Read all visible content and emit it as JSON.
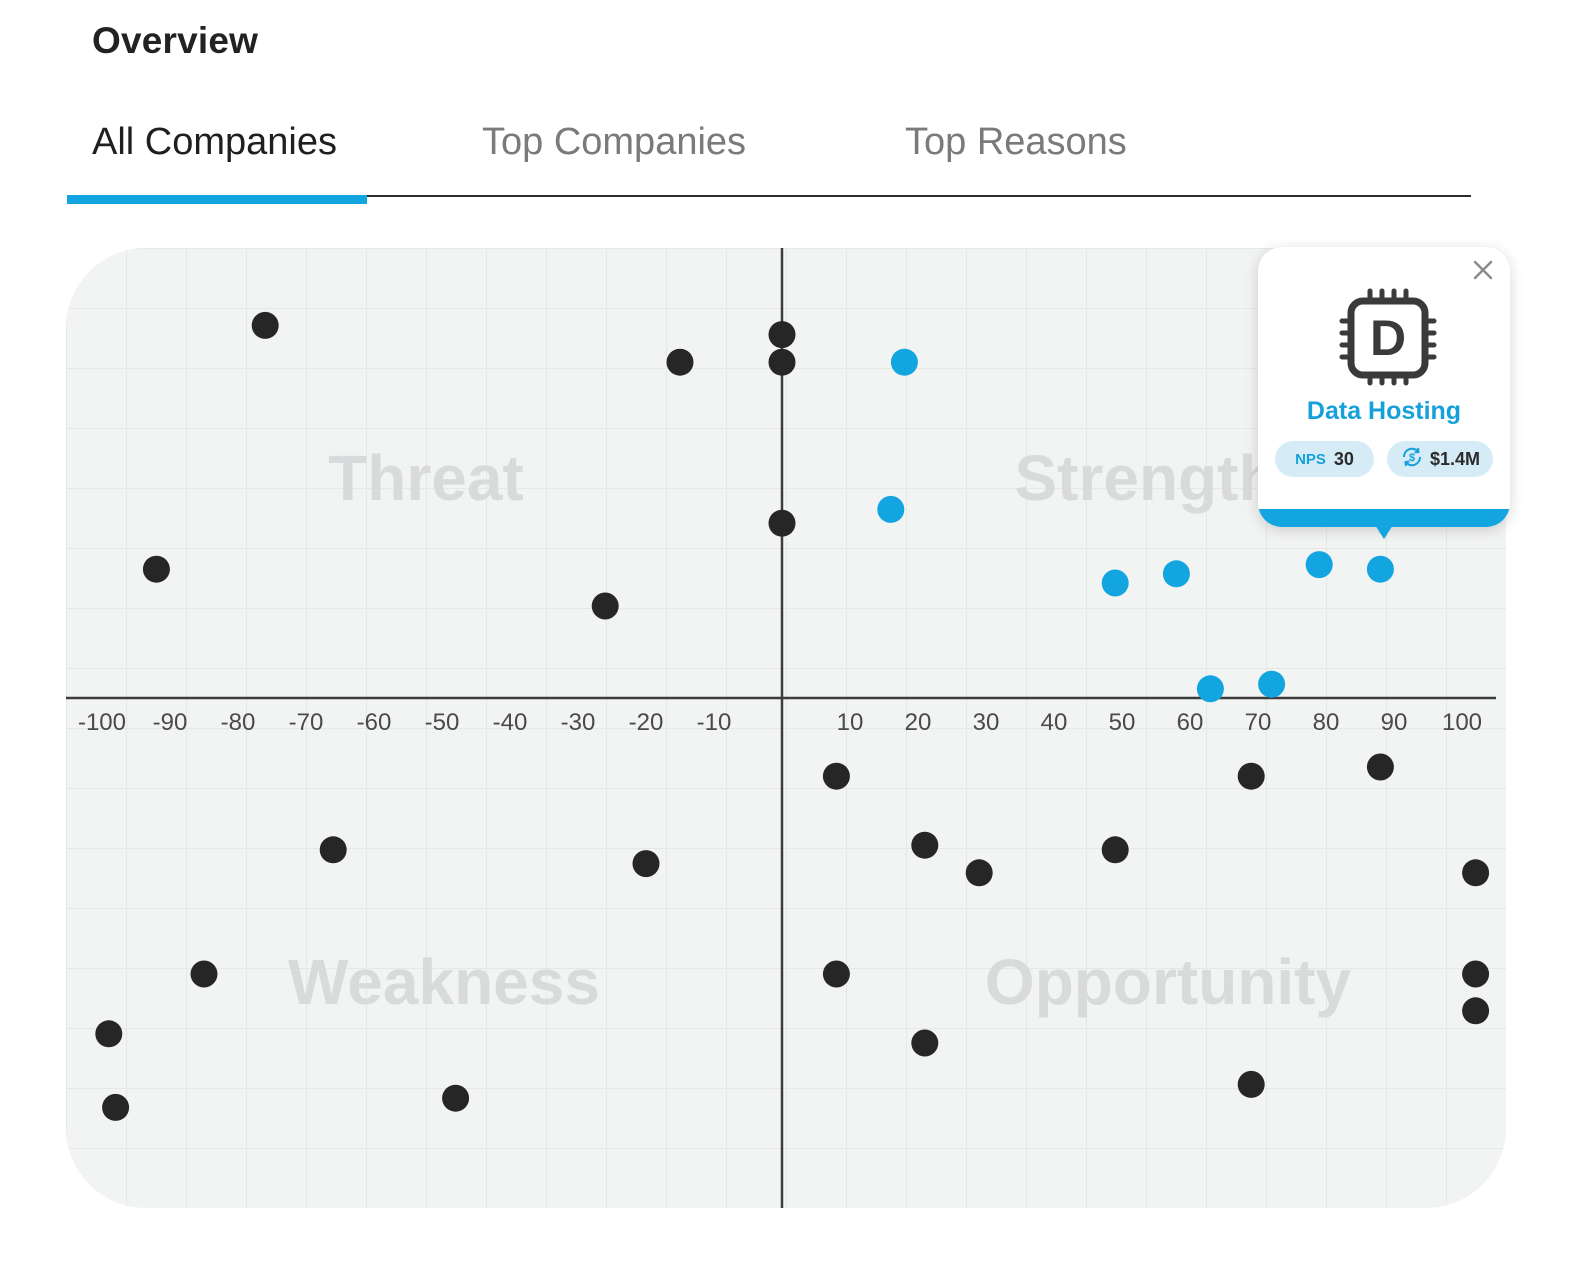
{
  "page": {
    "title": "Overview"
  },
  "tabs": [
    {
      "label": "All Companies",
      "active": true
    },
    {
      "label": "Top Companies",
      "active": false
    },
    {
      "label": "Top Reasons",
      "active": false
    }
  ],
  "colors": {
    "accent": "#12a5e0",
    "point_default": "#262626",
    "point_highlight": "#12a5e0"
  },
  "chart_data": {
    "type": "scatter",
    "title": "",
    "xlabel": "",
    "ylabel": "",
    "xlim": [
      -104,
      107
    ],
    "ylim": [
      -100,
      100
    ],
    "x_ticks": [
      "-100",
      "-90",
      "-80",
      "-70",
      "-60",
      "-50",
      "-40",
      "-30",
      "-20",
      "-10",
      "10",
      "20",
      "30",
      "40",
      "50",
      "60",
      "70",
      "80",
      "90",
      "100"
    ],
    "grid": true,
    "quadrants": {
      "top_left": "Threat",
      "top_right": "Strength",
      "bottom_left": "Weakness",
      "bottom_right": "Opportunity"
    },
    "series": [
      {
        "group": "all",
        "points": [
          [
            -76,
            81
          ],
          [
            0,
            79
          ],
          [
            -15,
            73
          ],
          [
            0,
            73
          ],
          [
            0,
            38
          ],
          [
            -92,
            28
          ],
          [
            -26,
            20
          ],
          [
            8,
            -17
          ],
          [
            -66,
            -33
          ],
          [
            -20,
            -36
          ],
          [
            21,
            -32
          ],
          [
            29,
            -38
          ],
          [
            49,
            -33
          ],
          [
            69,
            -17
          ],
          [
            88,
            -15
          ],
          [
            102,
            -38
          ],
          [
            -85,
            -60
          ],
          [
            8,
            -60
          ],
          [
            102,
            -60
          ],
          [
            -99,
            -73
          ],
          [
            102,
            -68
          ],
          [
            21,
            -75
          ],
          [
            -98,
            -89
          ],
          [
            -48,
            -87
          ],
          [
            69,
            -84
          ]
        ]
      },
      {
        "group": "highlighted",
        "points": [
          [
            18,
            73
          ],
          [
            16,
            41
          ],
          [
            49,
            25
          ],
          [
            58,
            27
          ],
          [
            79,
            29
          ],
          [
            88,
            28
          ],
          [
            63,
            2
          ],
          [
            72,
            3
          ]
        ]
      }
    ]
  },
  "tooltip": {
    "icon_letter": "D",
    "icon": "chip-icon",
    "name": "Data Hosting",
    "nps_label": "NPS",
    "nps_value": "30",
    "revenue_icon": "revenue-cycle-icon",
    "revenue_value": "$1.4M",
    "close_icon": "close-icon"
  }
}
